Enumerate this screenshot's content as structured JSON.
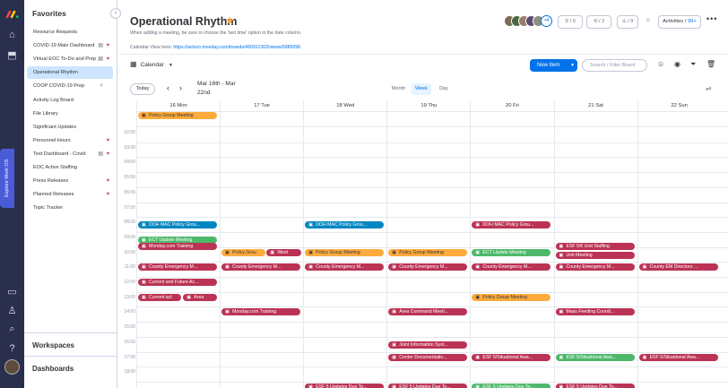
{
  "app": {
    "brand_color": "#ff3d57"
  },
  "rail": {
    "icons": [
      "home-icon",
      "inbox-icon",
      "calendar-icon",
      "person-icon",
      "search-icon",
      "help-icon"
    ],
    "explore_label": "Explore Work OS"
  },
  "sidebar": {
    "favorites_title": "Favorites",
    "items": [
      {
        "label": "Resource Requests",
        "badge": "",
        "badge2": ""
      },
      {
        "label": "COVID-19 Main Dashboard",
        "badge": "♥",
        "badge2": "▤"
      },
      {
        "label": "Virtual EOC To-Do and Prep ...",
        "badge": "♥",
        "badge2": "▤"
      },
      {
        "label": "Operational Rhythm",
        "badge": "",
        "badge2": ""
      },
      {
        "label": "COOP COVID-19 Prep",
        "badge": "",
        "badge2": "<"
      },
      {
        "label": "Activity Log Board",
        "badge": "",
        "badge2": ""
      },
      {
        "label": "File Library",
        "badge": "",
        "badge2": ""
      },
      {
        "label": "Significant Updates",
        "badge": "",
        "badge2": ""
      },
      {
        "label": "Personnel Hours",
        "badge": "♥",
        "badge2": ""
      },
      {
        "label": "Test Dashboard - Covid",
        "badge": "♥",
        "badge2": "▤"
      },
      {
        "label": "EOC Active Staffing",
        "badge": "",
        "badge2": ""
      },
      {
        "label": "Press Releases",
        "badge": "♥",
        "badge2": ""
      },
      {
        "label": "Planned Releases",
        "badge": "♥",
        "badge2": ""
      },
      {
        "label": "Topic Tracker",
        "badge": "",
        "badge2": ""
      }
    ],
    "workspaces": "Workspaces",
    "dashboards": "Dashboards"
  },
  "header": {
    "title": "Operational Rhythm",
    "description": "When adding a meeting, be sure to choose the 'last time' option in the date column.",
    "link_prefix": "Calendar View here:",
    "link_url": "https://actsco.monday.com/boards/460911363/views/6985098",
    "avatar_count": "+4",
    "btn_integrate": "0",
    "btn_automate": "2",
    "btn_members": "9",
    "activities_label": "Activities /",
    "activities_count": "99+"
  },
  "toolbar": {
    "view_label": "Calendar",
    "new_item": "New Item",
    "search_placeholder": "Search / Filter Board"
  },
  "calendar": {
    "today_label": "Today",
    "range_line1": "Mar 16th - Mar",
    "range_line2": "22nd",
    "views": [
      "Month",
      "Week",
      "Day"
    ],
    "active_view": "Week",
    "days": [
      "16 Mon",
      "17 Tue",
      "18 Wed",
      "19 Thu",
      "20 Fri",
      "21 Sat",
      "22 Sun"
    ],
    "times": [
      "02:00",
      "03:00",
      "04:00",
      "05:00",
      "06:00",
      "07:00",
      "08:00",
      "09:00",
      "10:00",
      "11:00",
      "12:00",
      "13:00",
      "14:00",
      "15:00",
      "16:00",
      "17:00",
      "18:00"
    ],
    "events": [
      {
        "day": 0,
        "row": -1,
        "lane": 0,
        "label": "Policy Group Meeting",
        "color": "orange"
      },
      {
        "day": 0,
        "row": 6,
        "lane": 1,
        "label": "DOH MAC Policy Grou...",
        "color": "blue"
      },
      {
        "day": 0,
        "row": 7,
        "lane": 1,
        "label": "ECT Update Meeting",
        "color": "green"
      },
      {
        "day": 0,
        "row": 7,
        "lane": 2,
        "label": "Monday.com Training",
        "color": "red"
      },
      {
        "day": 0,
        "row": 9,
        "lane": 0,
        "label": "County Emergency M...",
        "color": "red"
      },
      {
        "day": 0,
        "row": 10,
        "lane": 0,
        "label": "Current and Future Ac...",
        "color": "red"
      },
      {
        "day": 0,
        "row": 11,
        "lane": 0,
        "label": "Current act",
        "color": "red",
        "half": 1
      },
      {
        "day": 0,
        "row": 11,
        "lane": 0,
        "label": "Area",
        "color": "red",
        "half": 2
      },
      {
        "day": 1,
        "row": 8,
        "lane": 0,
        "label": "Policy Grou",
        "color": "orange",
        "half": 1
      },
      {
        "day": 1,
        "row": 8,
        "lane": 0,
        "label": "West",
        "color": "red",
        "half": 2
      },
      {
        "day": 1,
        "row": 9,
        "lane": 0,
        "label": "County Emergency M...",
        "color": "red"
      },
      {
        "day": 1,
        "row": 12,
        "lane": 0,
        "label": "Monday.com Training",
        "color": "red"
      },
      {
        "day": 2,
        "row": 6,
        "lane": 1,
        "label": "DOH MAC Policy Grou...",
        "color": "blue"
      },
      {
        "day": 2,
        "row": 8,
        "lane": 0,
        "label": "Policy Group Meeting",
        "color": "orange"
      },
      {
        "day": 2,
        "row": 9,
        "lane": 0,
        "label": "County Emergency M...",
        "color": "red"
      },
      {
        "day": 2,
        "row": 17,
        "lane": 0,
        "label": "ESF 5 Updates Due To...",
        "color": "red"
      },
      {
        "day": 3,
        "row": 8,
        "lane": 0,
        "label": "Policy Group Meeting",
        "color": "orange"
      },
      {
        "day": 3,
        "row": 9,
        "lane": 0,
        "label": "County Emergency M...",
        "color": "red"
      },
      {
        "day": 3,
        "row": 12,
        "lane": 0,
        "label": "Area Command Meeti...",
        "color": "red"
      },
      {
        "day": 3,
        "row": 14,
        "lane": 1,
        "label": "Joint Information Syst...",
        "color": "red"
      },
      {
        "day": 3,
        "row": 15,
        "lane": 0,
        "label": "Center Documentatio...",
        "color": "red"
      },
      {
        "day": 3,
        "row": 17,
        "lane": 0,
        "label": "ESF 5 Updates Due To...",
        "color": "red"
      },
      {
        "day": 4,
        "row": 6,
        "lane": 1,
        "label": "DOH MAC Policy Grou...",
        "color": "red"
      },
      {
        "day": 4,
        "row": 8,
        "lane": 0,
        "label": "ECT Update Meeting",
        "color": "green"
      },
      {
        "day": 4,
        "row": 9,
        "lane": 0,
        "label": "County Emergency M...",
        "color": "red"
      },
      {
        "day": 4,
        "row": 11,
        "lane": 0,
        "label": "Policy Group Meeting",
        "color": "orange"
      },
      {
        "day": 4,
        "row": 15,
        "lane": 0,
        "label": "ESF 5/Situational Awa...",
        "color": "red"
      },
      {
        "day": 4,
        "row": 17,
        "lane": 0,
        "label": "ESF 5 Updates Due To...",
        "color": "green"
      },
      {
        "day": 5,
        "row": 7,
        "lane": 2,
        "label": "ESF 5/6 Unit Staffing",
        "color": "red"
      },
      {
        "day": 5,
        "row": 8,
        "lane": 1,
        "label": "Unit Meeting",
        "color": "red"
      },
      {
        "day": 5,
        "row": 9,
        "lane": 0,
        "label": "County Emergency M...",
        "color": "red"
      },
      {
        "day": 5,
        "row": 12,
        "lane": 0,
        "label": "Mass Feeding Coordi...",
        "color": "red"
      },
      {
        "day": 5,
        "row": 15,
        "lane": 0,
        "label": "ESF 5/Situational Awa...",
        "color": "green"
      },
      {
        "day": 5,
        "row": 17,
        "lane": 0,
        "label": "ESF 5 Updates Due To...",
        "color": "red"
      },
      {
        "day": 6,
        "row": 9,
        "lane": 0,
        "label": "County EM Directors ...",
        "color": "red"
      },
      {
        "day": 6,
        "row": 15,
        "lane": 0,
        "label": "ESF 5/Situational Awa...",
        "color": "red"
      }
    ]
  }
}
